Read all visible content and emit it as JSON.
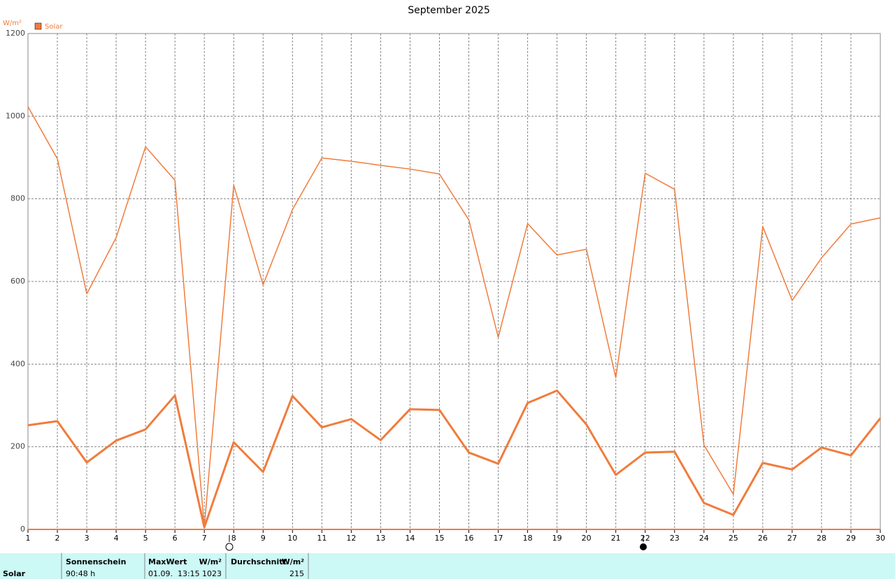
{
  "chart_data": {
    "type": "line",
    "title": "September 2025",
    "y_label": "W/m²",
    "legend": "Solar",
    "legend_color": "#f07c3c",
    "x": [
      1,
      2,
      3,
      4,
      5,
      6,
      7,
      8,
      9,
      10,
      11,
      12,
      13,
      14,
      15,
      16,
      17,
      18,
      19,
      20,
      21,
      22,
      23,
      24,
      25,
      26,
      27,
      28,
      29,
      30
    ],
    "xlim": [
      1,
      30
    ],
    "xticks": [
      1,
      2,
      3,
      4,
      5,
      6,
      7,
      8,
      9,
      10,
      11,
      12,
      13,
      14,
      15,
      16,
      17,
      18,
      19,
      20,
      21,
      22,
      23,
      24,
      25,
      26,
      27,
      28,
      29,
      30
    ],
    "ylim": [
      0,
      1200
    ],
    "yticks": [
      0,
      200,
      400,
      600,
      800,
      1000,
      1200
    ],
    "grid": true,
    "series": [
      {
        "color": "#f07c3c",
        "width": 1.5,
        "values": [
          1023,
          897,
          570,
          706,
          926,
          845,
          5,
          833,
          592,
          774,
          899,
          891,
          881,
          872,
          860,
          749,
          465,
          740,
          664,
          678,
          367,
          862,
          823,
          204,
          85,
          733,
          554,
          657,
          739,
          754
        ]
      },
      {
        "color": "#f07c3c",
        "width": 3,
        "values": [
          252,
          262,
          162,
          215,
          242,
          324,
          5,
          211,
          139,
          323,
          247,
          267,
          216,
          291,
          289,
          186,
          159,
          306,
          336,
          254,
          132,
          186,
          188,
          64,
          35,
          161,
          145,
          198,
          179,
          269
        ]
      }
    ]
  },
  "table": {
    "headers": [
      "Sonnenschein",
      "MaxWert",
      "W/m²",
      "Durchschnitt",
      "W/m²"
    ],
    "row_label": "Solar",
    "sunshine": "90:48 h",
    "max_time": "01.09.  13:15",
    "max_value": 1023,
    "average": 215
  }
}
